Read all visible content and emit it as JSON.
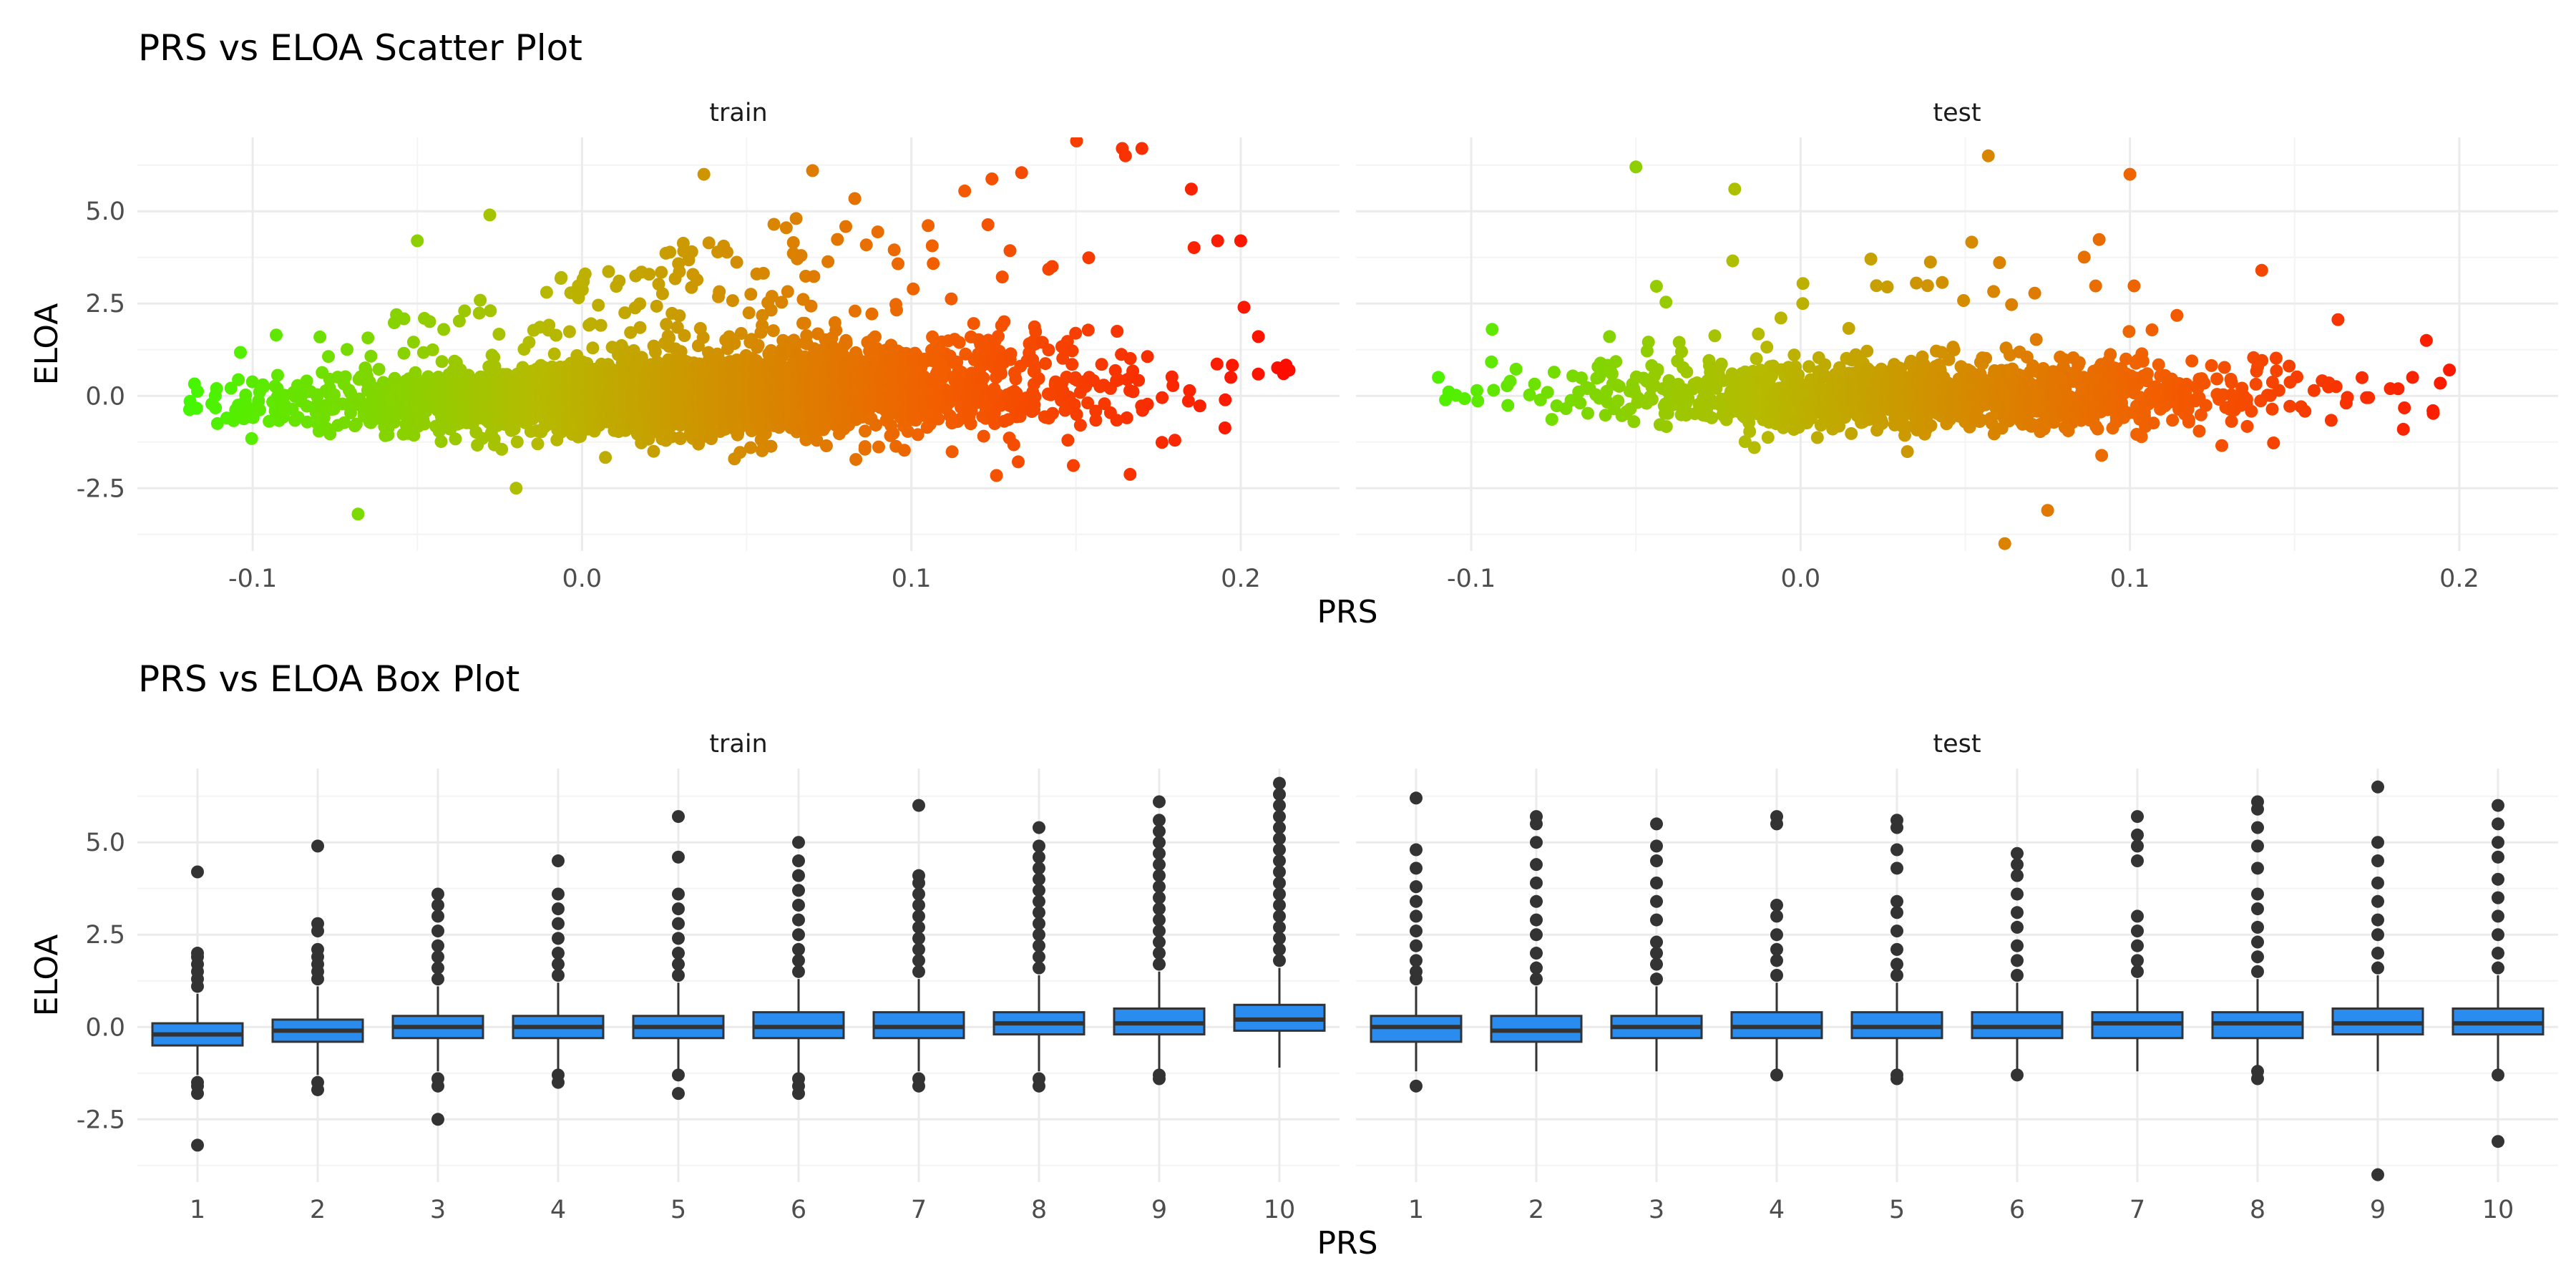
{
  "figure": {
    "colors": {
      "grid_major": "#ebebeb",
      "grid_minor": "#f4f4f4",
      "box_fill": "#2b8cf0",
      "box_line": "#333333",
      "outlier": "#333333",
      "gradient": [
        "#33ff00",
        "#b5bb00",
        "#f25f00",
        "#ff0000"
      ]
    }
  },
  "chart_data": [
    {
      "type": "scatter",
      "title": "PRS vs ELOA Scatter Plot",
      "xlabel": "PRS",
      "ylabel": "ELOA",
      "panels": [
        "train",
        "test"
      ],
      "xlim": [
        -0.135,
        0.23
      ],
      "ylim": [
        -4.2,
        7.0
      ],
      "xticks": [
        -0.1,
        0.0,
        0.1,
        0.2
      ],
      "xtick_labels": [
        "-0.1",
        "0.0",
        "0.1",
        "0.2"
      ],
      "yticks": [
        -2.5,
        0.0,
        2.5,
        5.0
      ],
      "ytick_labels": [
        "-2.5",
        "0.0",
        "2.5",
        "5.0"
      ],
      "color_by": "PRS",
      "color_scale": "green-to-red gradient",
      "grid": true,
      "point_summary": {
        "train": {
          "x_range": [
            -0.12,
            0.215
          ],
          "y_core_band": [
            -1.0,
            1.0
          ],
          "n_points_approx": 10000
        },
        "test": {
          "x_range": [
            -0.11,
            0.2
          ],
          "y_core_band": [
            -1.0,
            1.0
          ],
          "n_points_approx": 4000
        }
      },
      "notable_points": {
        "train": [
          [
            -0.068,
            -3.2
          ],
          [
            -0.02,
            -2.5
          ],
          [
            -0.05,
            4.2
          ],
          [
            -0.028,
            4.9
          ],
          [
            0.037,
            6.0
          ],
          [
            0.07,
            6.1
          ],
          [
            0.165,
            6.5
          ],
          [
            0.17,
            6.7
          ],
          [
            0.185,
            5.6
          ],
          [
            0.2,
            4.2
          ],
          [
            0.193,
            4.2
          ],
          [
            0.201,
            2.4
          ],
          [
            0.213,
            0.6
          ],
          [
            0.197,
            0.5
          ],
          [
            0.18,
            -1.2
          ]
        ],
        "test": [
          [
            -0.05,
            6.2
          ],
          [
            -0.02,
            5.6
          ],
          [
            0.057,
            6.5
          ],
          [
            0.1,
            6.0
          ],
          [
            0.14,
            3.4
          ],
          [
            0.062,
            -4.0
          ],
          [
            0.075,
            -3.1
          ],
          [
            0.197,
            0.7
          ],
          [
            0.19,
            1.5
          ],
          [
            0.192,
            -0.4
          ],
          [
            -0.11,
            0.5
          ]
        ]
      }
    },
    {
      "type": "box",
      "title": "PRS vs ELOA Box Plot",
      "xlabel": "PRS",
      "ylabel": "ELOA",
      "panels": [
        "train",
        "test"
      ],
      "categories": [
        "1",
        "2",
        "3",
        "4",
        "5",
        "6",
        "7",
        "8",
        "9",
        "10"
      ],
      "ylim": [
        -4.2,
        7.0
      ],
      "yticks": [
        -2.5,
        0.0,
        2.5,
        5.0
      ],
      "ytick_labels": [
        "-2.5",
        "0.0",
        "2.5",
        "5.0"
      ],
      "grid": true,
      "boxes": {
        "train": [
          {
            "q1": -0.5,
            "median": -0.2,
            "q3": 0.1,
            "whisker_low": -1.3,
            "whisker_high": 0.9,
            "outliers": [
              -3.2,
              -1.8,
              -1.6,
              -1.5,
              1.1,
              1.3,
              1.5,
              1.7,
              1.9,
              2.0,
              4.2
            ]
          },
          {
            "q1": -0.4,
            "median": -0.1,
            "q3": 0.2,
            "whisker_low": -1.3,
            "whisker_high": 1.1,
            "outliers": [
              -1.7,
              -1.5,
              1.3,
              1.5,
              1.7,
              1.9,
              2.1,
              2.6,
              2.8,
              4.9
            ]
          },
          {
            "q1": -0.3,
            "median": 0.0,
            "q3": 0.3,
            "whisker_low": -1.2,
            "whisker_high": 1.1,
            "outliers": [
              -2.5,
              -1.6,
              -1.4,
              1.3,
              1.6,
              1.9,
              2.2,
              2.6,
              3.0,
              3.3,
              3.6
            ]
          },
          {
            "q1": -0.3,
            "median": 0.0,
            "q3": 0.3,
            "whisker_low": -1.2,
            "whisker_high": 1.2,
            "outliers": [
              -1.5,
              -1.3,
              1.4,
              1.7,
              2.0,
              2.4,
              2.8,
              3.2,
              3.6,
              4.5
            ]
          },
          {
            "q1": -0.3,
            "median": 0.0,
            "q3": 0.3,
            "whisker_low": -1.2,
            "whisker_high": 1.2,
            "outliers": [
              -1.8,
              -1.3,
              1.4,
              1.7,
              2.0,
              2.4,
              2.8,
              3.2,
              3.6,
              4.6,
              5.7
            ]
          },
          {
            "q1": -0.3,
            "median": 0.0,
            "q3": 0.4,
            "whisker_low": -1.3,
            "whisker_high": 1.3,
            "outliers": [
              -1.8,
              -1.6,
              -1.4,
              1.5,
              1.8,
              2.1,
              2.5,
              2.9,
              3.3,
              3.7,
              4.1,
              4.5,
              5.0
            ]
          },
          {
            "q1": -0.3,
            "median": 0.0,
            "q3": 0.4,
            "whisker_low": -1.2,
            "whisker_high": 1.3,
            "outliers": [
              -1.6,
              -1.4,
              1.5,
              1.8,
              2.1,
              2.4,
              2.7,
              3.0,
              3.3,
              3.6,
              3.9,
              4.1,
              6.0
            ]
          },
          {
            "q1": -0.2,
            "median": 0.1,
            "q3": 0.4,
            "whisker_low": -1.2,
            "whisker_high": 1.4,
            "outliers": [
              -1.6,
              -1.4,
              1.6,
              1.9,
              2.2,
              2.5,
              2.8,
              3.1,
              3.4,
              3.7,
              4.0,
              4.3,
              4.6,
              4.9,
              5.4
            ]
          },
          {
            "q1": -0.2,
            "median": 0.1,
            "q3": 0.5,
            "whisker_low": -1.2,
            "whisker_high": 1.5,
            "outliers": [
              -1.4,
              -1.3,
              1.7,
              2.0,
              2.3,
              2.6,
              2.9,
              3.2,
              3.5,
              3.8,
              4.1,
              4.4,
              4.7,
              5.0,
              5.3,
              5.6,
              6.1
            ]
          },
          {
            "q1": -0.1,
            "median": 0.2,
            "q3": 0.6,
            "whisker_low": -1.1,
            "whisker_high": 1.6,
            "outliers": [
              1.8,
              2.1,
              2.4,
              2.7,
              3.0,
              3.3,
              3.6,
              3.9,
              4.2,
              4.5,
              4.8,
              5.1,
              5.4,
              5.7,
              6.0,
              6.3,
              6.6
            ]
          }
        ],
        "test": [
          {
            "q1": -0.4,
            "median": 0.0,
            "q3": 0.3,
            "whisker_low": -1.2,
            "whisker_high": 1.1,
            "outliers": [
              -1.6,
              1.3,
              1.5,
              1.8,
              2.2,
              2.6,
              3.0,
              3.4,
              3.8,
              4.3,
              4.8,
              6.2
            ]
          },
          {
            "q1": -0.4,
            "median": -0.1,
            "q3": 0.3,
            "whisker_low": -1.2,
            "whisker_high": 1.1,
            "outliers": [
              1.3,
              1.6,
              2.0,
              2.5,
              2.9,
              3.4,
              3.9,
              4.4,
              5.0,
              5.5,
              5.7
            ]
          },
          {
            "q1": -0.3,
            "median": 0.0,
            "q3": 0.3,
            "whisker_low": -1.2,
            "whisker_high": 1.1,
            "outliers": [
              1.3,
              1.7,
              2.0,
              2.3,
              2.9,
              3.4,
              3.9,
              4.5,
              4.9,
              5.5
            ]
          },
          {
            "q1": -0.3,
            "median": 0.0,
            "q3": 0.4,
            "whisker_low": -1.3,
            "whisker_high": 1.2,
            "outliers": [
              -1.3,
              1.4,
              1.8,
              2.1,
              2.5,
              3.0,
              3.3,
              5.5,
              5.7
            ]
          },
          {
            "q1": -0.3,
            "median": 0.0,
            "q3": 0.4,
            "whisker_low": -1.3,
            "whisker_high": 1.2,
            "outliers": [
              -1.4,
              -1.3,
              1.4,
              1.7,
              2.1,
              2.6,
              3.1,
              3.4,
              4.3,
              4.8,
              5.4,
              5.6
            ]
          },
          {
            "q1": -0.3,
            "median": 0.0,
            "q3": 0.4,
            "whisker_low": -1.2,
            "whisker_high": 1.2,
            "outliers": [
              -1.3,
              1.4,
              1.8,
              2.2,
              2.7,
              3.1,
              3.6,
              4.1,
              4.4,
              4.7
            ]
          },
          {
            "q1": -0.3,
            "median": 0.1,
            "q3": 0.4,
            "whisker_low": -1.2,
            "whisker_high": 1.3,
            "outliers": [
              1.5,
              1.8,
              2.2,
              2.6,
              3.0,
              4.5,
              4.9,
              5.2,
              5.7
            ]
          },
          {
            "q1": -0.3,
            "median": 0.1,
            "q3": 0.4,
            "whisker_low": -1.2,
            "whisker_high": 1.3,
            "outliers": [
              -1.4,
              -1.2,
              1.5,
              1.9,
              2.3,
              2.7,
              3.2,
              3.6,
              4.3,
              4.9,
              5.4,
              5.9,
              6.1
            ]
          },
          {
            "q1": -0.2,
            "median": 0.1,
            "q3": 0.5,
            "whisker_low": -1.2,
            "whisker_high": 1.4,
            "outliers": [
              -4.0,
              1.6,
              2.0,
              2.5,
              2.9,
              3.4,
              3.9,
              4.5,
              5.0,
              6.5
            ]
          },
          {
            "q1": -0.2,
            "median": 0.1,
            "q3": 0.5,
            "whisker_low": -1.2,
            "whisker_high": 1.4,
            "outliers": [
              -3.1,
              -1.3,
              1.6,
              2.0,
              2.5,
              3.0,
              3.5,
              4.0,
              4.6,
              5.0,
              5.5,
              6.0
            ]
          }
        ]
      }
    }
  ]
}
